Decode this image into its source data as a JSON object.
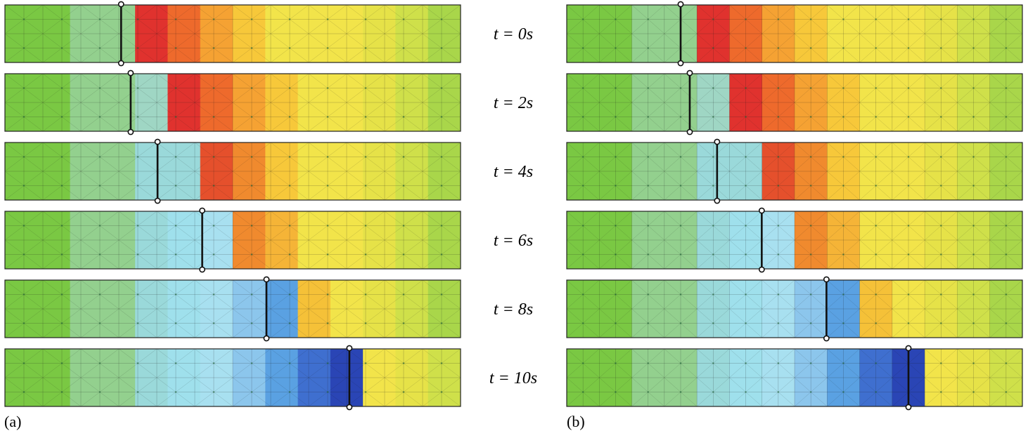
{
  "panels": [
    {
      "label": "(a)",
      "side": "left"
    },
    {
      "label": "(b)",
      "side": "right"
    }
  ],
  "time_labels": [
    "t = 0s",
    "t = 2s",
    "t = 4s",
    "t = 6s",
    "t = 8s",
    "t = 10s"
  ],
  "colors": {
    "front_line": "#111111",
    "mesh_line": "#1a1a1a",
    "node": "#1f6b3a",
    "border": "#222222"
  },
  "rows": [
    {
      "a": {
        "front": 0.255,
        "bands": [
          "#7ac843",
          "#7ac843",
          "#93d08e",
          "#93d08e",
          "#e0322e",
          "#ee6a2c",
          "#f5a233",
          "#f7c83a",
          "#f2e44a",
          "#f2e44a",
          "#f2e44a",
          "#e6e248",
          "#cfe04a",
          "#a9d64a"
        ]
      },
      "b": {
        "front": 0.25,
        "bands": [
          "#7ac843",
          "#7ac843",
          "#93d08e",
          "#93d08e",
          "#e0322e",
          "#ee6a2c",
          "#f5a233",
          "#f7c83a",
          "#f2e44a",
          "#f2e44a",
          "#f2e44a",
          "#e6e248",
          "#cfe04a",
          "#a9d64a"
        ]
      }
    },
    {
      "a": {
        "front": 0.276,
        "bands": [
          "#7ac843",
          "#7ac843",
          "#93d08e",
          "#93d08e",
          "#9fd6c4",
          "#e0322e",
          "#ee6a2c",
          "#f5a233",
          "#f7c83a",
          "#f2e44a",
          "#f2e44a",
          "#e6e248",
          "#cfe04a",
          "#a9d64a"
        ]
      },
      "b": {
        "front": 0.27,
        "bands": [
          "#7ac843",
          "#7ac843",
          "#93d08e",
          "#93d08e",
          "#9fd6c4",
          "#e0322e",
          "#ee6a2c",
          "#f5a233",
          "#f7c83a",
          "#f2e44a",
          "#f2e44a",
          "#e6e248",
          "#cfe04a",
          "#a9d64a"
        ]
      }
    },
    {
      "a": {
        "front": 0.335,
        "bands": [
          "#7ac843",
          "#7ac843",
          "#93d08e",
          "#93d08e",
          "#9ad9da",
          "#9ad9da",
          "#e5502c",
          "#f08a2e",
          "#f7c83a",
          "#f2e44a",
          "#f2e44a",
          "#e6e248",
          "#cfe04a",
          "#a9d64a"
        ]
      },
      "b": {
        "front": 0.33,
        "bands": [
          "#7ac843",
          "#7ac843",
          "#93d08e",
          "#93d08e",
          "#9ad9da",
          "#9ad9da",
          "#e5502c",
          "#f08a2e",
          "#f7c83a",
          "#f2e44a",
          "#f2e44a",
          "#e6e248",
          "#cfe04a",
          "#a9d64a"
        ]
      }
    },
    {
      "a": {
        "front": 0.433,
        "bands": [
          "#7ac843",
          "#7ac843",
          "#93d08e",
          "#93d08e",
          "#9ad9da",
          "#9fe0ec",
          "#a8e0f0",
          "#f08a2e",
          "#f5b437",
          "#f2e44a",
          "#f2e44a",
          "#e6e248",
          "#cfe04a",
          "#a9d64a"
        ]
      },
      "b": {
        "front": 0.428,
        "bands": [
          "#7ac843",
          "#7ac843",
          "#93d08e",
          "#93d08e",
          "#9ad9da",
          "#9fe0ec",
          "#a8e0f0",
          "#f08a2e",
          "#f5b437",
          "#f2e44a",
          "#f2e44a",
          "#e6e248",
          "#cfe04a",
          "#a9d64a"
        ]
      }
    },
    {
      "a": {
        "front": 0.574,
        "bands": [
          "#7ac843",
          "#7ac843",
          "#93d08e",
          "#93d08e",
          "#9ad9da",
          "#9fe0ec",
          "#a8e0f0",
          "#8cc6ec",
          "#5aa1e2",
          "#f5c138",
          "#f2e44a",
          "#e6e248",
          "#cfe04a",
          "#a9d64a"
        ]
      },
      "b": {
        "front": 0.57,
        "bands": [
          "#7ac843",
          "#7ac843",
          "#93d08e",
          "#93d08e",
          "#9ad9da",
          "#9fe0ec",
          "#a8e0f0",
          "#8cc6ec",
          "#5aa1e2",
          "#f5c138",
          "#f2e44a",
          "#e6e248",
          "#cfe04a",
          "#a9d64a"
        ]
      }
    },
    {
      "a": {
        "front": 0.756,
        "bands": [
          "#7ac843",
          "#7ac843",
          "#93d08e",
          "#93d08e",
          "#9ad9da",
          "#9fe0ec",
          "#a8e0f0",
          "#8cc6ec",
          "#5aa1e2",
          "#3f6fcf",
          "#2a45b5",
          "#f2e44a",
          "#e6e248",
          "#cfe04a"
        ]
      },
      "b": {
        "front": 0.75,
        "bands": [
          "#7ac843",
          "#7ac843",
          "#93d08e",
          "#93d08e",
          "#9ad9da",
          "#9fe0ec",
          "#a8e0f0",
          "#8cc6ec",
          "#5aa1e2",
          "#3f6fcf",
          "#2a45b5",
          "#f2e44a",
          "#e6e248",
          "#cfe04a"
        ]
      }
    }
  ]
}
